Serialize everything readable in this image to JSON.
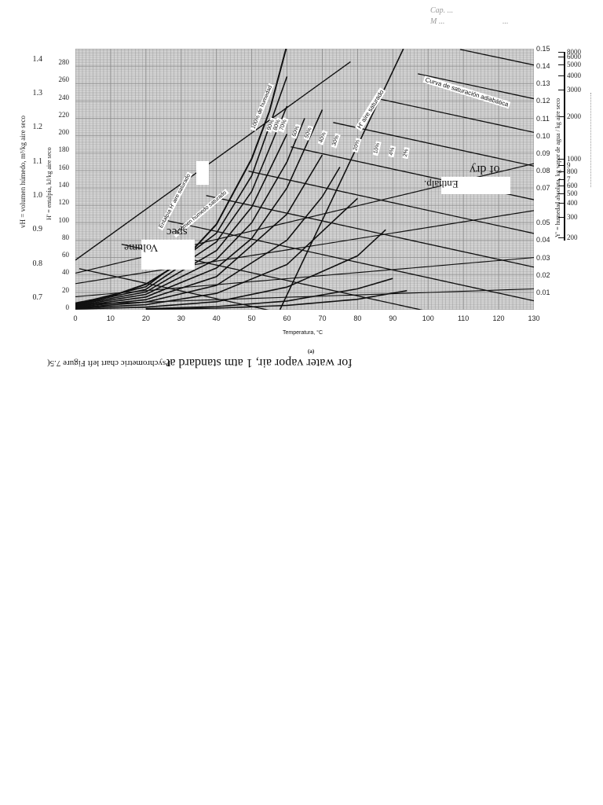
{
  "page": {
    "handwritten_notes": [
      "Cap. ...",
      "..."
    ],
    "figure_caption_sub": "(a)",
    "figure_caption_flipped": "for water vapor air, 1 atm standard at",
    "figure_caption_flipped_small": "Psychrometric chart left Figure 7.5(",
    "overlay_flipped_texts": [
      "of dry",
      "Enthalp.",
      "Volume",
      "spec"
    ]
  },
  "chart_data": {
    "type": "line",
    "title": "Psychrometric chart for water vapor–air, 1 atm",
    "subtitle": "(a)",
    "xlabel": "Temperatura, °C",
    "x_ticks": [
      0,
      10,
      20,
      30,
      40,
      50,
      60,
      70,
      80,
      90,
      100,
      110,
      120,
      130
    ],
    "xlim": [
      0,
      130
    ],
    "left_axis_enthalpy": {
      "label": "H' = entalpía, kJ/kg aire seco",
      "ticks": [
        0,
        20,
        40,
        60,
        80,
        100,
        120,
        140,
        160,
        180,
        200,
        220,
        240,
        260,
        280
      ],
      "range": [
        0,
        280
      ]
    },
    "left_axis_volume": {
      "label": "vH = volumen húmedo, m³/kg aire seco",
      "ticks": [
        "0.7",
        "0.8",
        "0.9",
        "1.0",
        "1.1",
        "1.2",
        "1.3",
        "1.4"
      ],
      "range": [
        0.7,
        1.4
      ]
    },
    "right_axis_humidity": {
      "label": "Y' = humedad absoluta, kg vapor de agua / kg aire seco",
      "ticks": [
        "0.01",
        "0.02",
        "0.03",
        "0.04",
        "0.05",
        "0.07",
        "0.08",
        "0.09",
        "0.10",
        "0.11",
        "0.12",
        "0.13",
        "0.14",
        "0.15"
      ],
      "range": [
        0,
        0.15
      ]
    },
    "right_log_scale": {
      "ticks": [
        "200",
        "300",
        "400",
        "500",
        "600",
        "7",
        "800",
        "9",
        "1000",
        "2000",
        "3000",
        "4000",
        "5000",
        "6000",
        "8000"
      ]
    },
    "curve_labels": [
      "100% de humedad",
      "90%",
      "80%",
      "70%",
      "60%",
      "50%",
      "40%",
      "30%",
      "20%",
      "10%",
      "4%",
      "2%",
      "H' aire saturado",
      "Curva de saturación adiabática",
      "Entalpía H' aire saturado",
      "Volumen húmedo saturado"
    ],
    "series": [
      {
        "name": "100% RH",
        "x": [
          0,
          10,
          20,
          30,
          40,
          50,
          55,
          60
        ],
        "y": [
          0.0038,
          0.0077,
          0.0147,
          0.0273,
          0.0491,
          0.0868,
          0.114,
          0.152
        ]
      },
      {
        "name": "90% RH",
        "x": [
          0,
          20,
          40,
          50,
          60
        ],
        "y": [
          0.0034,
          0.0132,
          0.044,
          0.077,
          0.134
        ]
      },
      {
        "name": "80% RH",
        "x": [
          0,
          20,
          40,
          50,
          60
        ],
        "y": [
          0.003,
          0.0117,
          0.039,
          0.068,
          0.117
        ]
      },
      {
        "name": "70% RH",
        "x": [
          0,
          20,
          40,
          50,
          60
        ],
        "y": [
          0.0027,
          0.0102,
          0.034,
          0.059,
          0.101
        ]
      },
      {
        "name": "60% RH",
        "x": [
          0,
          20,
          40,
          50,
          60,
          65
        ],
        "y": [
          0.0023,
          0.0088,
          0.029,
          0.05,
          0.085,
          0.11
        ]
      },
      {
        "name": "50% RH",
        "x": [
          0,
          20,
          40,
          50,
          60,
          70
        ],
        "y": [
          0.0019,
          0.0073,
          0.024,
          0.041,
          0.07,
          0.115
        ]
      },
      {
        "name": "40% RH",
        "x": [
          0,
          20,
          40,
          60,
          70
        ],
        "y": [
          0.0015,
          0.0058,
          0.019,
          0.055,
          0.089
        ]
      },
      {
        "name": "30% RH",
        "x": [
          0,
          20,
          40,
          60,
          70,
          75
        ],
        "y": [
          0.0011,
          0.0044,
          0.014,
          0.04,
          0.065,
          0.082
        ]
      },
      {
        "name": "20% RH",
        "x": [
          0,
          20,
          40,
          60,
          80
        ],
        "y": [
          0.0008,
          0.0029,
          0.0094,
          0.026,
          0.064
        ]
      },
      {
        "name": "10% RH",
        "x": [
          0,
          20,
          40,
          60,
          80,
          88
        ],
        "y": [
          0.0004,
          0.0015,
          0.0046,
          0.013,
          0.031,
          0.046
        ]
      },
      {
        "name": "4% RH",
        "x": [
          20,
          40,
          60,
          80,
          90
        ],
        "y": [
          0.0006,
          0.0018,
          0.005,
          0.012,
          0.018
        ]
      },
      {
        "name": "2% RH",
        "x": [
          20,
          40,
          60,
          80,
          94
        ],
        "y": [
          0.0003,
          0.0009,
          0.0025,
          0.006,
          0.011
        ]
      }
    ],
    "grid": true,
    "legend_position": "none (inline labels)"
  }
}
